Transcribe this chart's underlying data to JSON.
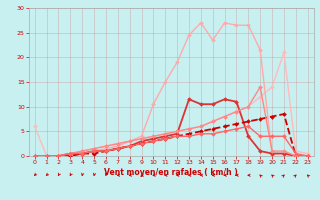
{
  "bg_color": "#c8f0f0",
  "grid_color": "#cc8888",
  "xlabel": "Vent moyen/en rafales ( km/h )",
  "xlim": [
    -0.5,
    23.5
  ],
  "ylim": [
    0,
    30
  ],
  "xticks": [
    0,
    1,
    2,
    3,
    4,
    5,
    6,
    7,
    8,
    9,
    10,
    11,
    12,
    13,
    14,
    15,
    16,
    17,
    18,
    19,
    20,
    21,
    22,
    23
  ],
  "yticks": [
    0,
    5,
    10,
    15,
    20,
    25,
    30
  ],
  "series": [
    {
      "x": [
        0,
        1,
        2,
        3,
        4,
        5,
        6,
        7,
        8,
        9,
        10,
        11,
        12,
        13,
        14,
        15,
        16,
        17,
        18,
        19,
        20,
        21,
        22,
        23
      ],
      "y": [
        6,
        0,
        0,
        0.5,
        1,
        1.5,
        2,
        2.5,
        3,
        3.5,
        4,
        4.5,
        5,
        5.5,
        6,
        7,
        8,
        9,
        10,
        12,
        14,
        21,
        1,
        0.5
      ],
      "color": "#ffbbbb",
      "lw": 1.0,
      "marker": "D",
      "ms": 2.0
    },
    {
      "x": [
        0,
        1,
        2,
        3,
        4,
        5,
        6,
        7,
        8,
        9,
        10,
        11,
        12,
        13,
        14,
        15,
        16,
        17,
        18,
        19,
        20,
        21,
        22,
        23
      ],
      "y": [
        0,
        0,
        0,
        0,
        0.5,
        1,
        1.5,
        2,
        3,
        4,
        10.5,
        15,
        19,
        24.5,
        27,
        23.5,
        27,
        26.5,
        26.5,
        21.5,
        0.5,
        0.5,
        0,
        0
      ],
      "color": "#ffaaaa",
      "lw": 1.0,
      "marker": "D",
      "ms": 2.0
    },
    {
      "x": [
        0,
        1,
        2,
        3,
        4,
        5,
        6,
        7,
        8,
        9,
        10,
        11,
        12,
        13,
        14,
        15,
        16,
        17,
        18,
        19,
        20,
        21,
        22,
        23
      ],
      "y": [
        0,
        0,
        0,
        0.5,
        0.5,
        1,
        1,
        1.5,
        2,
        3,
        3.5,
        4,
        4.5,
        11.5,
        10.5,
        10.5,
        11.5,
        11,
        4,
        1,
        0.5,
        0.5,
        0,
        0
      ],
      "color": "#dd3333",
      "lw": 1.3,
      "marker": "D",
      "ms": 2.0
    },
    {
      "x": [
        0,
        1,
        2,
        3,
        4,
        5,
        6,
        7,
        8,
        9,
        10,
        11,
        12,
        13,
        14,
        15,
        16,
        17,
        18,
        19,
        20,
        21,
        22,
        23
      ],
      "y": [
        0,
        0,
        0,
        0,
        0.5,
        0.5,
        1,
        1.5,
        2,
        2.5,
        3,
        3.5,
        4,
        4.5,
        5,
        5.5,
        6,
        6.5,
        7,
        7.5,
        8,
        8.5,
        0,
        0
      ],
      "color": "#cc0000",
      "lw": 1.3,
      "marker": "D",
      "ms": 2.0,
      "dashed": true
    },
    {
      "x": [
        0,
        1,
        2,
        3,
        4,
        5,
        6,
        7,
        8,
        9,
        10,
        11,
        12,
        13,
        14,
        15,
        16,
        17,
        18,
        19,
        20,
        21,
        22,
        23
      ],
      "y": [
        0,
        0,
        0,
        0.5,
        1,
        1.5,
        2,
        2.5,
        3,
        3.5,
        4,
        4.5,
        5,
        5.5,
        6,
        7,
        8,
        9,
        10,
        14,
        1,
        1,
        0,
        0
      ],
      "color": "#ff8888",
      "lw": 1.0,
      "marker": "D",
      "ms": 2.0
    },
    {
      "x": [
        0,
        1,
        2,
        3,
        4,
        5,
        6,
        7,
        8,
        9,
        10,
        11,
        12,
        13,
        14,
        15,
        16,
        17,
        18,
        19,
        20,
        21,
        22,
        23
      ],
      "y": [
        0,
        0,
        0,
        0.5,
        0.5,
        1,
        1,
        1.5,
        2,
        2.5,
        3,
        3.5,
        4,
        4,
        4.5,
        4.5,
        5,
        5.5,
        6,
        4,
        4,
        4,
        0.5,
        0
      ],
      "color": "#ff6666",
      "lw": 1.0,
      "marker": "D",
      "ms": 2.0
    }
  ],
  "wind_dirs": [
    225,
    225,
    210,
    210,
    195,
    195,
    195,
    270,
    270,
    270,
    270,
    270,
    270,
    270,
    270,
    270,
    270,
    270,
    270,
    315,
    315,
    45,
    45,
    315
  ]
}
